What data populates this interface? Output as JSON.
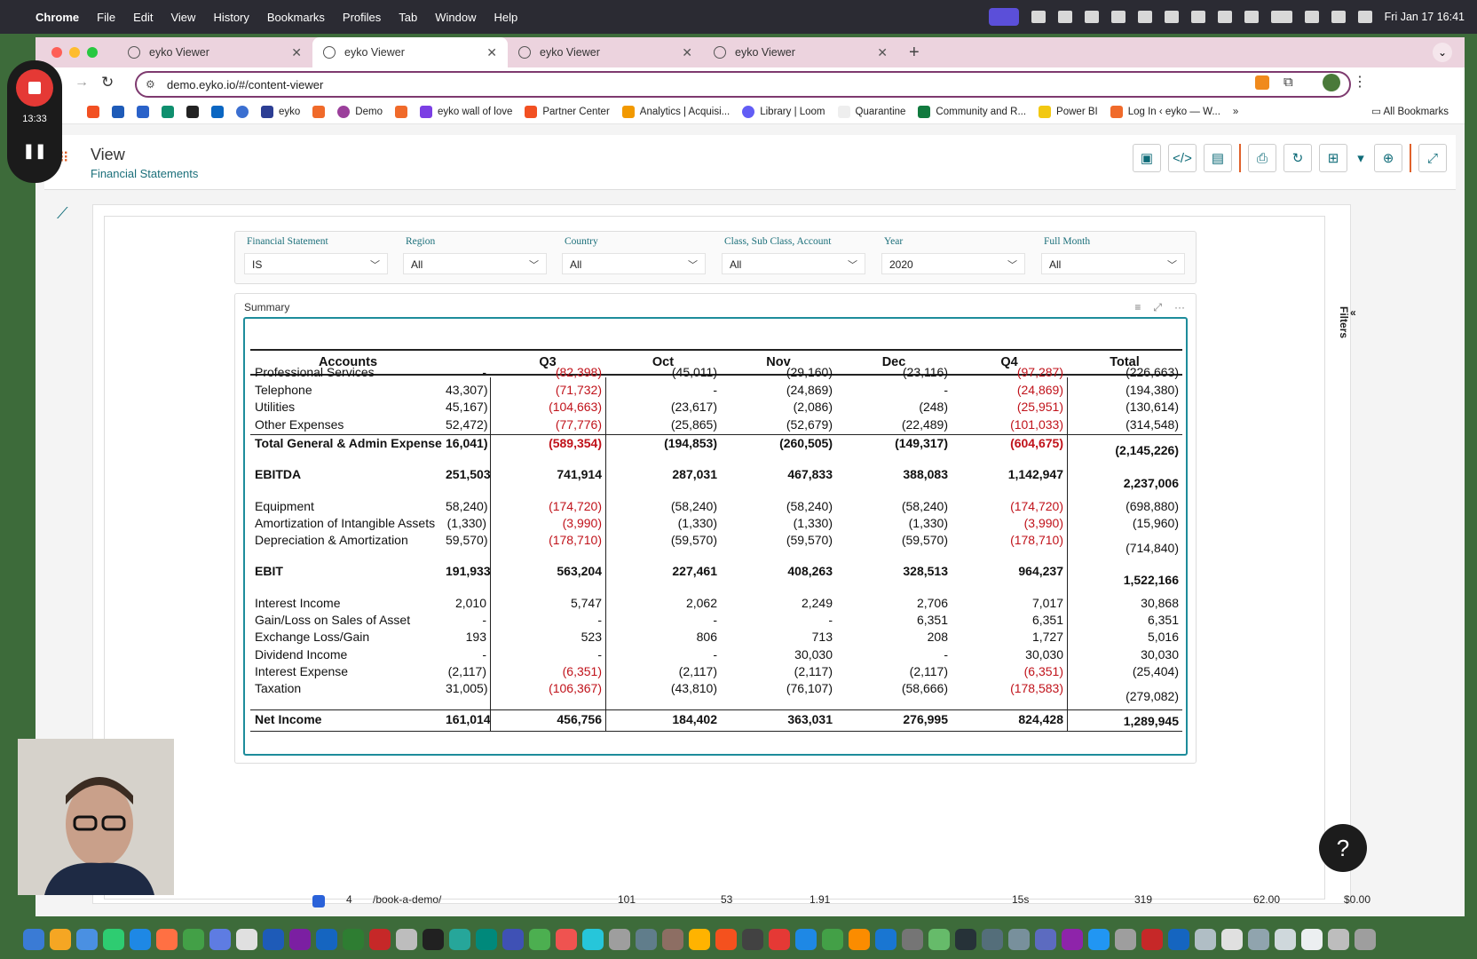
{
  "menubar": {
    "app": "Chrome",
    "items": [
      "File",
      "Edit",
      "View",
      "History",
      "Bookmarks",
      "Profiles",
      "Tab",
      "Window",
      "Help"
    ],
    "clock": "Fri Jan 17  16:41"
  },
  "tabs": [
    {
      "label": "eyko Viewer"
    },
    {
      "label": "eyko Viewer"
    },
    {
      "label": "eyko Viewer"
    },
    {
      "label": "eyko Viewer"
    }
  ],
  "url": "demo.eyko.io/#/content-viewer",
  "bookmarks": [
    "eyko",
    "Demo",
    "eyko wall of love",
    "Partner Center",
    "Analytics | Acquisi...",
    "Library | Loom",
    "Quarantine",
    "Community and R...",
    "Power BI",
    "Log In ‹ eyko — W..."
  ],
  "all_bookmarks": "All Bookmarks",
  "recorder": {
    "time": "13:33"
  },
  "header": {
    "title": "View",
    "subtitle": "Financial Statements"
  },
  "filters": [
    {
      "label": "Financial Statement",
      "value": "IS"
    },
    {
      "label": "Region",
      "value": "All"
    },
    {
      "label": "Country",
      "value": "All"
    },
    {
      "label": "Class, Sub Class, Account",
      "value": "All"
    },
    {
      "label": "Year",
      "value": "2020"
    },
    {
      "label": "Full Month",
      "value": "All"
    }
  ],
  "filters_tab": "Filters",
  "summary": {
    "title": "Summary",
    "columns": [
      "Accounts",
      "",
      "Q3",
      "Oct",
      "Nov",
      "Dec",
      "Q4",
      "Total"
    ],
    "rows": [
      {
        "account": "Professional Services",
        "v": [
          "-",
          "(82,398)",
          "(45,011)",
          "(29,160)",
          "(23,116)",
          "(97,287)",
          "(226,663)"
        ]
      },
      {
        "account": "Telephone",
        "v": [
          "43,307)",
          "(71,732)",
          "-",
          "(24,869)",
          "-",
          "(24,869)",
          "(194,380)"
        ]
      },
      {
        "account": "Utilities",
        "v": [
          "45,167)",
          "(104,663)",
          "(23,617)",
          "(2,086)",
          "(248)",
          "(25,951)",
          "(130,614)"
        ]
      },
      {
        "account": "Other Expenses",
        "v": [
          "52,472)",
          "(77,776)",
          "(25,865)",
          "(52,679)",
          "(22,489)",
          "(101,033)",
          "(314,548)"
        ]
      },
      {
        "account": "Total General & Admin Expense",
        "v": [
          "16,041)",
          "(589,354)",
          "(194,853)",
          "(260,505)",
          "(149,317)",
          "(604,675)",
          "(2,145,226)"
        ],
        "bold": true
      },
      {
        "account": "EBITDA",
        "v": [
          "251,503",
          "741,914",
          "287,031",
          "467,833",
          "388,083",
          "1,142,947",
          "2,237,006"
        ],
        "bold": true
      },
      {
        "account": "Equipment",
        "v": [
          "58,240)",
          "(174,720)",
          "(58,240)",
          "(58,240)",
          "(58,240)",
          "(174,720)",
          "(698,880)"
        ]
      },
      {
        "account": "Amortization of Intangible Assets",
        "v": [
          "(1,330)",
          "(3,990)",
          "(1,330)",
          "(1,330)",
          "(1,330)",
          "(3,990)",
          "(15,960)"
        ]
      },
      {
        "account": "Depreciation & Amortization",
        "v": [
          "59,570)",
          "(178,710)",
          "(59,570)",
          "(59,570)",
          "(59,570)",
          "(178,710)",
          "(714,840)"
        ]
      },
      {
        "account": "EBIT",
        "v": [
          "191,933",
          "563,204",
          "227,461",
          "408,263",
          "328,513",
          "964,237",
          "1,522,166"
        ],
        "bold": true
      },
      {
        "account": "Interest Income",
        "v": [
          "2,010",
          "5,747",
          "2,062",
          "2,249",
          "2,706",
          "7,017",
          "30,868"
        ]
      },
      {
        "account": "Gain/Loss on Sales of Asset",
        "v": [
          "-",
          "-",
          "-",
          "-",
          "6,351",
          "6,351",
          "6,351"
        ]
      },
      {
        "account": "Exchange Loss/Gain",
        "v": [
          "193",
          "523",
          "806",
          "713",
          "208",
          "1,727",
          "5,016"
        ]
      },
      {
        "account": "Dividend Income",
        "v": [
          "-",
          "-",
          "-",
          "30,030",
          "-",
          "30,030",
          "30,030"
        ]
      },
      {
        "account": "Interest Expense",
        "v": [
          "(2,117)",
          "(6,351)",
          "(2,117)",
          "(2,117)",
          "(2,117)",
          "(6,351)",
          "(25,404)"
        ]
      },
      {
        "account": "Taxation",
        "v": [
          "31,005)",
          "(106,367)",
          "(43,810)",
          "(76,107)",
          "(58,666)",
          "(178,583)",
          "(279,082)"
        ]
      },
      {
        "account": "Net Income",
        "v": [
          "161,014",
          "456,756",
          "184,402",
          "363,031",
          "276,995",
          "824,428",
          "1,289,945"
        ],
        "bold": true
      }
    ]
  },
  "background_row": {
    "num": "4",
    "path": "/book-a-demo/",
    "a": "101",
    "b": "53",
    "c": "1.91",
    "d": "15s",
    "e": "319",
    "f": "62.00",
    "g": "$0.00"
  },
  "help": "?",
  "colors": {
    "accent": "#1b6f7a",
    "negative": "#c0121a",
    "tab_bar": "#ecd3de"
  }
}
